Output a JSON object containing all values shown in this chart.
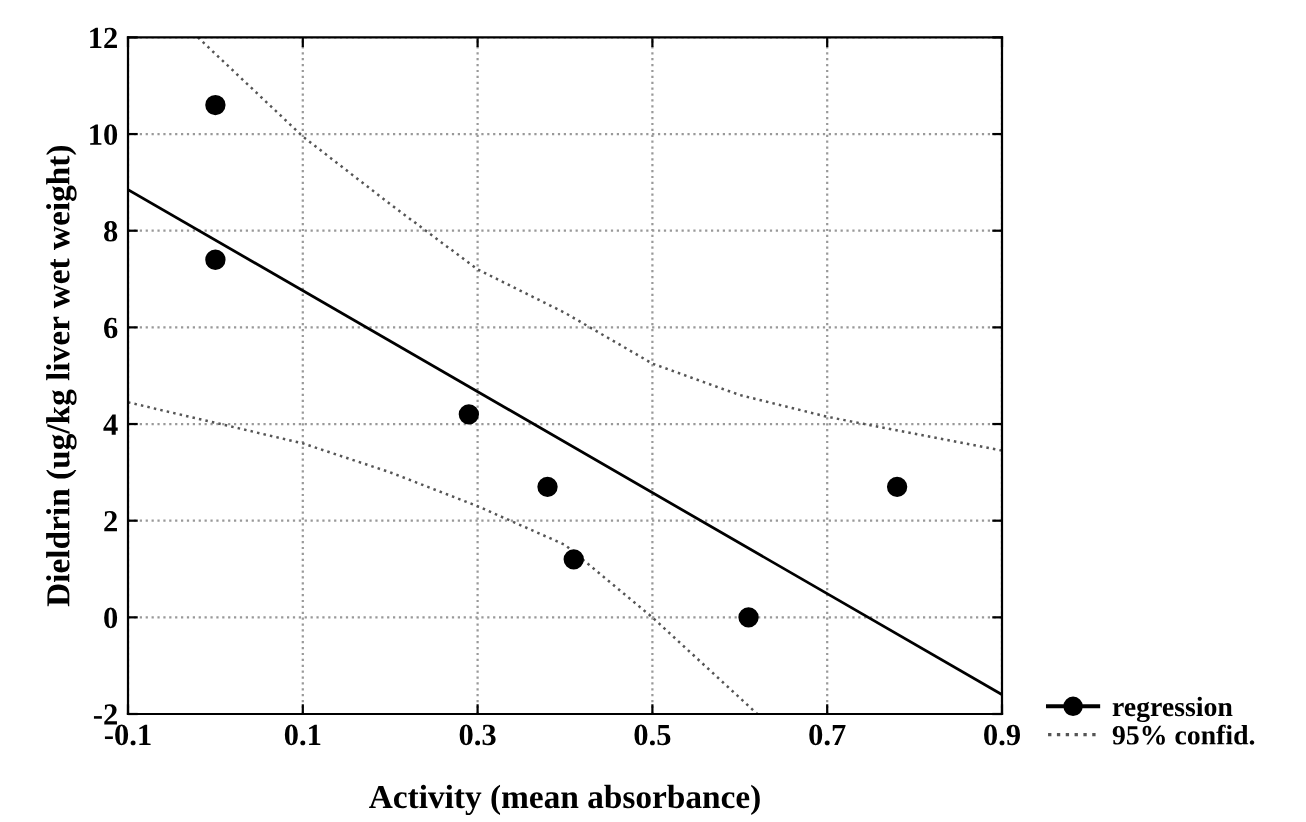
{
  "chart_data": {
    "type": "scatter",
    "xlabel": "Activity (mean absorbance)",
    "ylabel": "Dieldrin (ug/kg liver wet weight)",
    "xlim": [
      -0.1,
      0.9
    ],
    "xticks": [
      -0.1,
      0.1,
      0.3,
      0.5,
      0.7,
      0.9
    ],
    "ylim": [
      -2,
      12
    ],
    "yticks": [
      -2,
      0,
      2,
      4,
      6,
      8,
      10,
      12
    ],
    "grid": true,
    "legend": "right",
    "series": [
      {
        "color": "#000000",
        "marker": "circle",
        "x": [
          0.0,
          0.0,
          0.29,
          0.38,
          0.41,
          0.61,
          0.78
        ],
        "values": [
          10.6,
          7.4,
          4.2,
          2.7,
          1.2,
          0.0,
          2.7
        ]
      },
      {
        "type": "line",
        "name": "regression",
        "color": "#000000",
        "line_style": "solid",
        "x": [
          -0.1,
          0.9
        ],
        "values": [
          8.85,
          -1.6
        ]
      },
      {
        "type": "line",
        "name": "95% confid.",
        "color": "#555555",
        "line_style": "dotted",
        "x": [
          -0.02,
          0.1,
          0.2,
          0.3,
          0.4,
          0.5,
          0.6,
          0.7,
          0.8,
          0.9
        ],
        "values": [
          12,
          9.95,
          8.55,
          7.2,
          6.3,
          5.25,
          4.6,
          4.15,
          3.8,
          3.45
        ]
      },
      {
        "type": "line",
        "color": "#555555",
        "line_style": "dotted",
        "x": [
          -0.1,
          0.1,
          0.2,
          0.3,
          0.4,
          0.5,
          0.62
        ],
        "values": [
          4.45,
          3.6,
          3.0,
          2.3,
          1.5,
          0.0,
          -2
        ]
      }
    ]
  }
}
